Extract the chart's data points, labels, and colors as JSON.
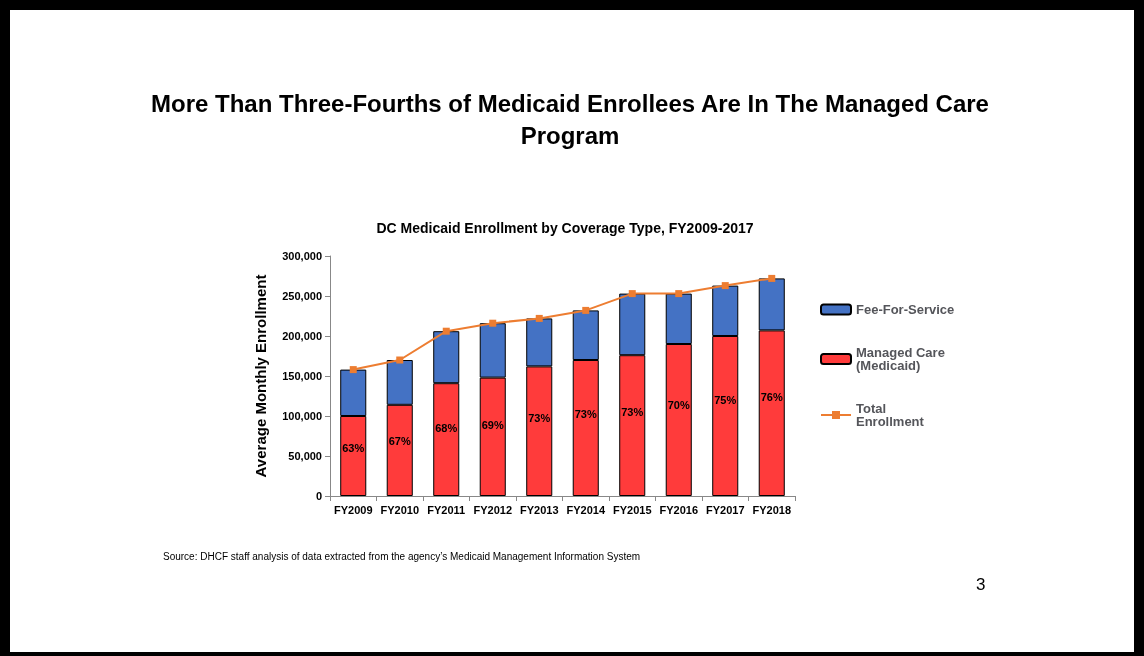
{
  "chart_data": {
    "type": "bar",
    "title": "More Than Three-Fourths of Medicaid Enrollees Are In The Managed Care Program",
    "subtitle": "DC Medicaid Enrollment by Coverage Type, FY2009-2017",
    "ylabel": "Average Monthly Enrollment",
    "categories": [
      "FY2009",
      "FY2010",
      "FY2011",
      "FY2012",
      "FY2013",
      "FY2014",
      "FY2015",
      "FY2016",
      "FY2017",
      "FY2018"
    ],
    "stacked": true,
    "series": [
      {
        "name": "Managed Care (Medicaid)",
        "color": "#ff3b3b",
        "values": [
          100000,
          114000,
          141000,
          148000,
          162000,
          170000,
          176000,
          190000,
          200000,
          207000
        ]
      },
      {
        "name": "Fee-For-Service",
        "color": "#4472c4",
        "values": [
          58000,
          56000,
          65000,
          68000,
          60000,
          62000,
          77000,
          63000,
          63000,
          65000
        ]
      },
      {
        "name": "Total Enrollment",
        "type": "line",
        "color": "#ed7d31",
        "marker": "square",
        "values": [
          158000,
          170000,
          206000,
          216000,
          222000,
          232000,
          253000,
          253000,
          263000,
          272000
        ]
      }
    ],
    "ylim": [
      0,
      300000
    ],
    "yticks": [
      0,
      {
        "value": 50000,
        "label": "50,000"
      },
      {
        "value": 100000,
        "label": "100,000"
      },
      {
        "value": 150000,
        "label": "150,000"
      },
      {
        "value": 200000,
        "label": "200,000"
      },
      {
        "value": 250000,
        "label": "250,000"
      },
      {
        "value": 300000,
        "label": "300,000"
      }
    ],
    "grid": false,
    "legend": "right",
    "annotations": [
      "63%",
      "67%",
      "68%",
      "69%",
      "73%",
      "73%",
      "73%",
      "70%",
      "75%",
      "76%",
      "Source: DHCF staff analysis of data extracted from the agency’s Medicaid Management Information System",
      "3"
    ]
  }
}
